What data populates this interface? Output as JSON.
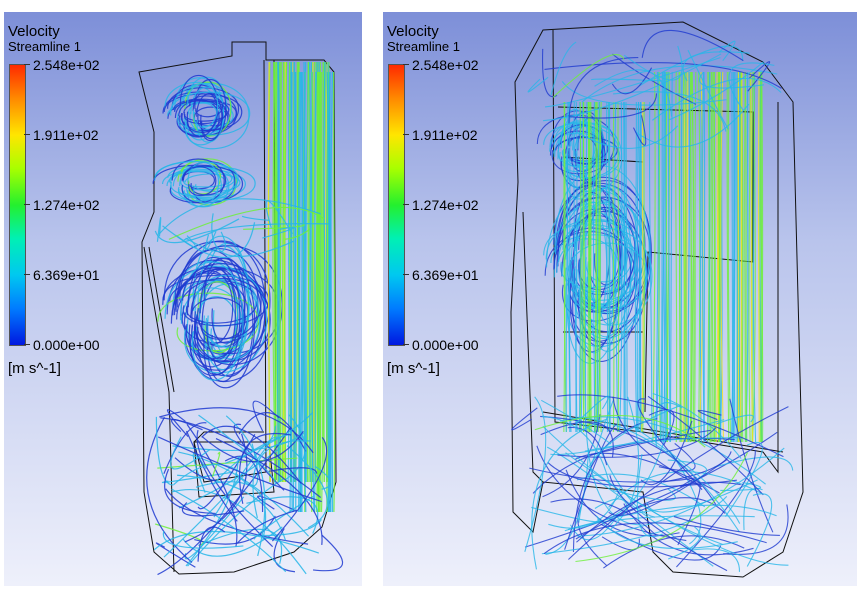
{
  "legend": {
    "title": "Velocity",
    "subtitle": "Streamline 1",
    "ticks": [
      "2.548e+02",
      "1.911e+02",
      "1.274e+02",
      "6.369e+01",
      "0.000e+00"
    ],
    "units": "[m s^-1]",
    "colors": [
      "#ff2a00",
      "#ff8a00",
      "#ffe600",
      "#a8ff00",
      "#24f02e",
      "#00f0b4",
      "#00c8f0",
      "#007bff",
      "#0018e0"
    ]
  },
  "panels": [
    {
      "name": "left-view"
    },
    {
      "name": "right-view"
    }
  ],
  "background_colors": {
    "top": "#7d8fd8",
    "bottom": "#eef0fb"
  },
  "streamline_colors": {
    "slow": "#1e3ad0",
    "mid": "#27b6e8",
    "fast": "#6ef03a",
    "peak": "#f2e21c"
  }
}
